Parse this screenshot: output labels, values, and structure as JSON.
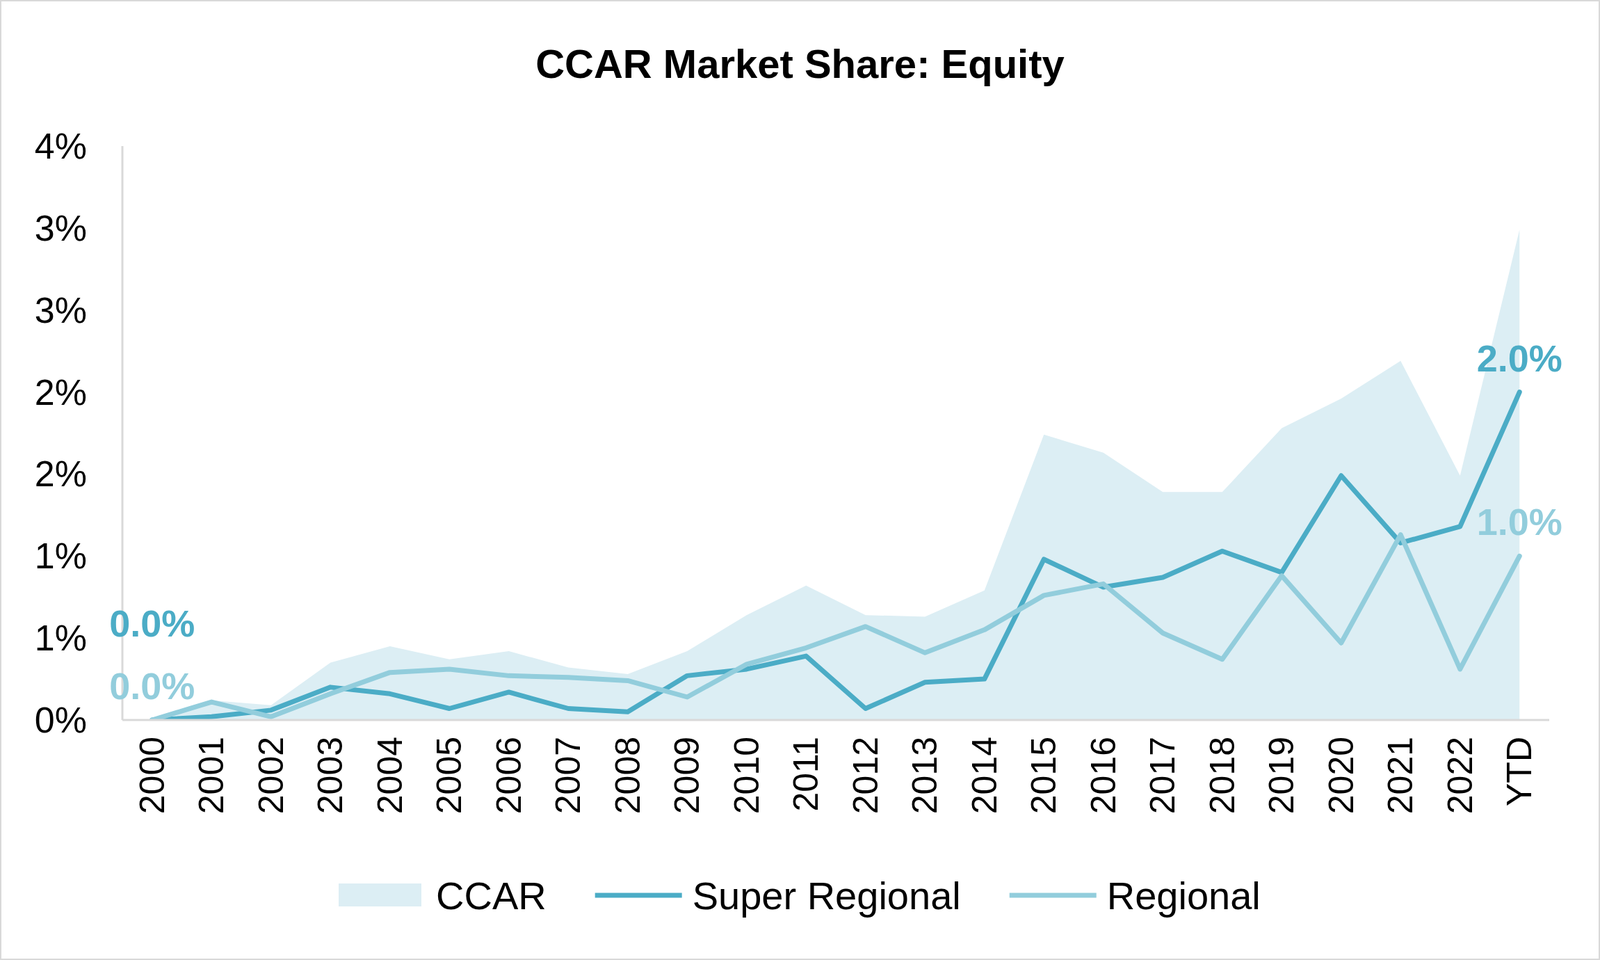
{
  "chart_data": {
    "type": "line",
    "title": "CCAR Market Share: Equity",
    "categories": [
      "2000",
      "2001",
      "2002",
      "2003",
      "2004",
      "2005",
      "2006",
      "2007",
      "2008",
      "2009",
      "2010",
      "2011",
      "2012",
      "2013",
      "2014",
      "2015",
      "2016",
      "2017",
      "2018",
      "2019",
      "2020",
      "2021",
      "2022",
      "YTD"
    ],
    "series": [
      {
        "name": "CCAR",
        "type": "area",
        "color": "#DCEEF4",
        "values": [
          0,
          0.12,
          0.09,
          0.35,
          0.45,
          0.37,
          0.42,
          0.32,
          0.28,
          0.42,
          0.64,
          0.82,
          0.64,
          0.63,
          0.79,
          1.74,
          1.63,
          1.39,
          1.39,
          1.78,
          1.96,
          2.19,
          1.49,
          2.99
        ]
      },
      {
        "name": "Super Regional",
        "type": "line",
        "color": "#4BACC6",
        "values": [
          0,
          0.02,
          0.06,
          0.2,
          0.16,
          0.07,
          0.17,
          0.07,
          0.05,
          0.27,
          0.31,
          0.39,
          0.07,
          0.23,
          0.25,
          0.98,
          0.81,
          0.87,
          1.03,
          0.9,
          1.49,
          1.08,
          1.18,
          2.0
        ],
        "value_labels": [
          "0.0%",
          null,
          null,
          null,
          null,
          null,
          null,
          null,
          null,
          null,
          null,
          null,
          null,
          null,
          null,
          null,
          null,
          null,
          null,
          null,
          null,
          null,
          null,
          "2.0%"
        ]
      },
      {
        "name": "Regional",
        "type": "line",
        "color": "#92CDDC",
        "values": [
          0,
          0.11,
          0.02,
          0.16,
          0.29,
          0.31,
          0.27,
          0.26,
          0.24,
          0.14,
          0.34,
          0.44,
          0.57,
          0.41,
          0.55,
          0.76,
          0.83,
          0.53,
          0.37,
          0.88,
          0.47,
          1.13,
          0.31,
          1.0
        ],
        "value_labels": [
          "0.0%",
          null,
          null,
          null,
          null,
          null,
          null,
          null,
          null,
          null,
          null,
          null,
          null,
          null,
          null,
          null,
          null,
          null,
          null,
          null,
          null,
          null,
          null,
          "1.0%"
        ]
      }
    ],
    "ylim": [
      0,
      3.5
    ],
    "yticks": [
      {
        "value": 0,
        "label": "0%"
      },
      {
        "value": 0.5,
        "label": "1%"
      },
      {
        "value": 1,
        "label": "1%"
      },
      {
        "value": 1.5,
        "label": "2%"
      },
      {
        "value": 2,
        "label": "2%"
      },
      {
        "value": 2.5,
        "label": "3%"
      },
      {
        "value": 3,
        "label": "3%"
      },
      {
        "value": 3.5,
        "label": "4%"
      }
    ],
    "grid": false,
    "legend": "bottom"
  }
}
